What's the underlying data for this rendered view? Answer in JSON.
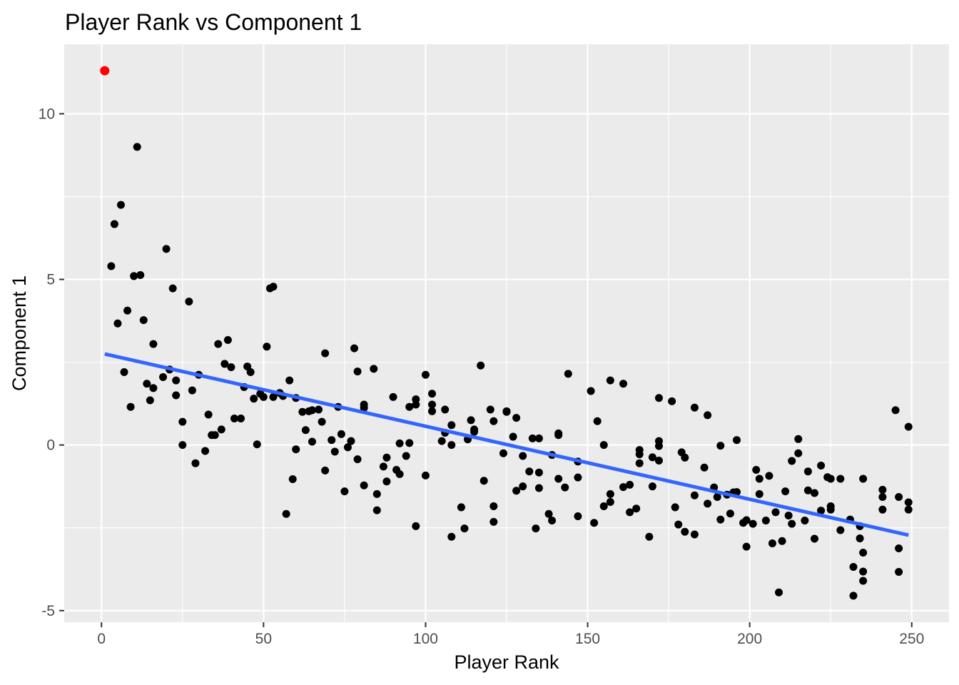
{
  "chart_data": {
    "type": "scatter",
    "title": "Player Rank vs Component 1",
    "xlabel": "Player Rank",
    "ylabel": "Component 1",
    "xlim": [
      -11.5,
      261.5
    ],
    "ylim": [
      -5.35,
      12.1
    ],
    "x_ticks": [
      0,
      50,
      100,
      150,
      200,
      250
    ],
    "x_tick_labels": [
      "0",
      "50",
      "100",
      "150",
      "200",
      "250"
    ],
    "y_ticks": [
      -5,
      0,
      5,
      10
    ],
    "y_tick_labels": [
      "-5",
      "0",
      "5",
      "10"
    ],
    "grid": true,
    "legend": "none",
    "colors": {
      "panel": "#ebebeb",
      "grid": "#ffffff",
      "points": "#000000",
      "highlight": "#ff0000",
      "trend": "#3366ff"
    },
    "highlight_point": {
      "x": 1,
      "y": 11.3
    },
    "trend_line": {
      "x": [
        1,
        249
      ],
      "y": [
        2.75,
        -2.72
      ]
    },
    "points": [
      [
        3,
        5.4
      ],
      [
        4,
        6.67
      ],
      [
        5,
        3.67
      ],
      [
        6,
        7.25
      ],
      [
        7,
        2.2
      ],
      [
        8,
        4.06
      ],
      [
        9,
        1.15
      ],
      [
        10,
        5.1
      ],
      [
        11,
        9.0
      ],
      [
        12,
        5.13
      ],
      [
        13,
        3.77
      ],
      [
        14,
        1.85
      ],
      [
        15,
        1.35
      ],
      [
        16,
        3.05
      ],
      [
        16,
        1.72
      ],
      [
        19,
        2.05
      ],
      [
        20,
        5.92
      ],
      [
        21,
        2.28
      ],
      [
        22,
        4.73
      ],
      [
        23,
        1.5
      ],
      [
        23,
        1.95
      ],
      [
        25,
        0.7
      ],
      [
        25,
        0.0
      ],
      [
        27,
        4.33
      ],
      [
        28,
        1.65
      ],
      [
        29,
        -0.55
      ],
      [
        30,
        2.12
      ],
      [
        32,
        -0.18
      ],
      [
        33,
        0.92
      ],
      [
        34,
        0.3
      ],
      [
        35,
        0.3
      ],
      [
        36,
        3.05
      ],
      [
        37,
        0.47
      ],
      [
        38,
        2.45
      ],
      [
        39,
        3.17
      ],
      [
        40,
        2.35
      ],
      [
        41,
        0.8
      ],
      [
        43,
        0.8
      ],
      [
        44,
        1.75
      ],
      [
        45,
        2.37
      ],
      [
        46,
        2.2
      ],
      [
        47,
        1.4
      ],
      [
        48,
        0.02
      ],
      [
        49,
        1.55
      ],
      [
        50,
        1.45
      ],
      [
        51,
        2.97
      ],
      [
        52,
        4.73
      ],
      [
        53,
        4.78
      ],
      [
        53,
        1.45
      ],
      [
        55,
        1.57
      ],
      [
        56,
        1.48
      ],
      [
        57,
        -2.08
      ],
      [
        58,
        1.95
      ],
      [
        59,
        -1.03
      ],
      [
        60,
        1.42
      ],
      [
        60,
        -0.13
      ],
      [
        62,
        1.0
      ],
      [
        63,
        0.45
      ],
      [
        64,
        1.02
      ],
      [
        65,
        0.1
      ],
      [
        65,
        1.05
      ],
      [
        67,
        1.07
      ],
      [
        68,
        0.7
      ],
      [
        69,
        -0.77
      ],
      [
        69,
        2.77
      ],
      [
        71,
        0.15
      ],
      [
        72,
        -0.2
      ],
      [
        73,
        1.15
      ],
      [
        74,
        0.33
      ],
      [
        75,
        -1.4
      ],
      [
        76,
        -0.07
      ],
      [
        77,
        0.12
      ],
      [
        78,
        2.92
      ],
      [
        79,
        -0.43
      ],
      [
        79,
        2.22
      ],
      [
        81,
        1.22
      ],
      [
        81,
        1.12
      ],
      [
        81,
        -1.22
      ],
      [
        84,
        2.3
      ],
      [
        85,
        -1.48
      ],
      [
        85,
        -1.97
      ],
      [
        87,
        -0.65
      ],
      [
        88,
        -0.38
      ],
      [
        88,
        -1.1
      ],
      [
        90,
        1.45
      ],
      [
        91,
        -0.75
      ],
      [
        92,
        0.05
      ],
      [
        92,
        -0.88
      ],
      [
        94,
        -0.33
      ],
      [
        95,
        0.06
      ],
      [
        95,
        1.15
      ],
      [
        97,
        1.38
      ],
      [
        97,
        1.22
      ],
      [
        97,
        -2.45
      ],
      [
        100,
        2.12
      ],
      [
        100,
        -0.92
      ],
      [
        102,
        1.55
      ],
      [
        102,
        1.22
      ],
      [
        102,
        1.02
      ],
      [
        105,
        0.12
      ],
      [
        106,
        0.37
      ],
      [
        106,
        1.07
      ],
      [
        108,
        0.6
      ],
      [
        108,
        0.0
      ],
      [
        108,
        -2.77
      ],
      [
        111,
        -1.88
      ],
      [
        112,
        -2.52
      ],
      [
        113,
        0.17
      ],
      [
        114,
        0.75
      ],
      [
        115,
        0.4
      ],
      [
        115,
        0.47
      ],
      [
        117,
        2.4
      ],
      [
        118,
        -1.08
      ],
      [
        120,
        1.07
      ],
      [
        121,
        0.72
      ],
      [
        121,
        -1.85
      ],
      [
        121,
        -2.32
      ],
      [
        124,
        -0.25
      ],
      [
        125,
        1.02
      ],
      [
        125,
        1.0
      ],
      [
        127,
        0.25
      ],
      [
        128,
        -1.38
      ],
      [
        128,
        0.82
      ],
      [
        130,
        -0.33
      ],
      [
        130,
        -1.25
      ],
      [
        132,
        -0.8
      ],
      [
        133,
        0.2
      ],
      [
        134,
        -2.52
      ],
      [
        135,
        -0.83
      ],
      [
        135,
        0.2
      ],
      [
        135,
        -1.3
      ],
      [
        138,
        -2.08
      ],
      [
        139,
        -0.3
      ],
      [
        139,
        -2.28
      ],
      [
        141,
        0.35
      ],
      [
        141,
        0.3
      ],
      [
        141,
        -1.02
      ],
      [
        143,
        -1.28
      ],
      [
        144,
        2.15
      ],
      [
        147,
        -0.5
      ],
      [
        147,
        -0.98
      ],
      [
        147,
        -2.15
      ],
      [
        151,
        1.63
      ],
      [
        152,
        -2.35
      ],
      [
        153,
        0.72
      ],
      [
        155,
        -1.85
      ],
      [
        155,
        0.0
      ],
      [
        157,
        1.95
      ],
      [
        157,
        -1.48
      ],
      [
        157,
        -1.72
      ],
      [
        161,
        1.85
      ],
      [
        161,
        -1.27
      ],
      [
        163,
        -1.2
      ],
      [
        163,
        -2.03
      ],
      [
        165,
        -1.92
      ],
      [
        166,
        -0.55
      ],
      [
        166,
        -0.28
      ],
      [
        166,
        -0.15
      ],
      [
        169,
        -2.77
      ],
      [
        170,
        -0.37
      ],
      [
        170,
        -1.25
      ],
      [
        172,
        1.42
      ],
      [
        172,
        -0.47
      ],
      [
        172,
        0.12
      ],
      [
        172,
        -0.03
      ],
      [
        176,
        1.32
      ],
      [
        177,
        -1.88
      ],
      [
        178,
        -2.4
      ],
      [
        179,
        -0.22
      ],
      [
        180,
        -0.38
      ],
      [
        180,
        -2.62
      ],
      [
        183,
        1.13
      ],
      [
        183,
        -1.52
      ],
      [
        183,
        -2.7
      ],
      [
        186,
        -0.68
      ],
      [
        187,
        0.9
      ],
      [
        187,
        -1.77
      ],
      [
        189,
        -1.28
      ],
      [
        190,
        -1.57
      ],
      [
        191,
        -0.02
      ],
      [
        191,
        -2.25
      ],
      [
        193,
        -1.5
      ],
      [
        194,
        -2.07
      ],
      [
        195,
        -1.43
      ],
      [
        196,
        0.15
      ],
      [
        196,
        -1.42
      ],
      [
        198,
        -2.35
      ],
      [
        199,
        -2.27
      ],
      [
        199,
        -3.07
      ],
      [
        201,
        -2.38
      ],
      [
        202,
        -0.75
      ],
      [
        203,
        -1.48
      ],
      [
        203,
        -1.02
      ],
      [
        205,
        -2.28
      ],
      [
        206,
        -0.93
      ],
      [
        207,
        -2.97
      ],
      [
        208,
        -2.03
      ],
      [
        209,
        -4.45
      ],
      [
        210,
        -2.9
      ],
      [
        211,
        -1.4
      ],
      [
        212,
        -2.13
      ],
      [
        213,
        -2.38
      ],
      [
        213,
        -0.48
      ],
      [
        215,
        0.18
      ],
      [
        215,
        -0.25
      ],
      [
        217,
        -2.28
      ],
      [
        218,
        -1.37
      ],
      [
        218,
        -0.8
      ],
      [
        220,
        -1.45
      ],
      [
        220,
        -2.83
      ],
      [
        222,
        -0.62
      ],
      [
        222,
        -1.98
      ],
      [
        224,
        -0.97
      ],
      [
        225,
        -1.85
      ],
      [
        225,
        -1.95
      ],
      [
        225,
        -1.02
      ],
      [
        228,
        -1.02
      ],
      [
        228,
        -2.57
      ],
      [
        231,
        -2.25
      ],
      [
        232,
        -3.68
      ],
      [
        232,
        -4.55
      ],
      [
        234,
        -2.45
      ],
      [
        234,
        -2.82
      ],
      [
        235,
        -1.02
      ],
      [
        235,
        -3.25
      ],
      [
        235,
        -3.82
      ],
      [
        235,
        -4.1
      ],
      [
        241,
        -1.35
      ],
      [
        241,
        -1.57
      ],
      [
        241,
        -1.95
      ],
      [
        245,
        1.05
      ],
      [
        246,
        -1.57
      ],
      [
        246,
        -3.12
      ],
      [
        246,
        -3.83
      ],
      [
        249,
        0.55
      ],
      [
        249,
        -1.73
      ],
      [
        249,
        -1.95
      ]
    ]
  }
}
